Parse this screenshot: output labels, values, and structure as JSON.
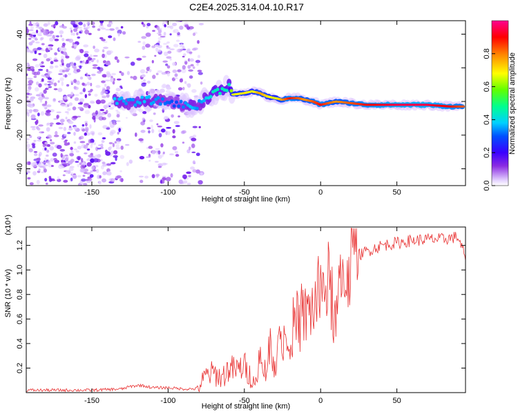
{
  "title": "C2E4.2025.314.04.10.R17",
  "chart_data": [
    {
      "type": "heatmap",
      "name": "spectrogram",
      "xlabel": "Height of straight line (km)",
      "ylabel": "Frequency (Hz)",
      "xlim": [
        -193,
        95
      ],
      "ylim": [
        -50,
        48
      ],
      "xticks": [
        -150,
        -100,
        -50,
        0,
        50
      ],
      "xtick_labels": [
        "-150",
        "-100",
        "-50",
        "0",
        "50"
      ],
      "yticks": [
        -40,
        -20,
        0,
        20,
        40
      ],
      "ytick_labels": [
        "-40",
        "-20",
        "0",
        "20",
        "40"
      ],
      "colorbar": {
        "label": "Normalized spectral amplitude",
        "range": [
          0.0,
          1.0
        ],
        "ticks": [
          0.0,
          0.2,
          0.4,
          0.6,
          0.8
        ],
        "tick_labels": [
          "0.0",
          "0.2",
          "0.4",
          "0.6",
          "0.8"
        ],
        "colors": [
          "#ffffff",
          "#d6b8ff",
          "#8a2be2",
          "#4000ff",
          "#0050ff",
          "#00d0ff",
          "#00ff80",
          "#80ff00",
          "#ffff00",
          "#ff8000",
          "#ff0000",
          "#ff0090"
        ]
      },
      "ridge": {
        "x": [
          -135,
          -125,
          -115,
          -105,
          -95,
          -85,
          -80,
          -75,
          -70,
          -65,
          -60,
          -58,
          -50,
          -45,
          -40,
          -35,
          -30,
          -25,
          -20,
          -15,
          -10,
          -5,
          0,
          5,
          10,
          20,
          30,
          50,
          70,
          85,
          93
        ],
        "freq": [
          1,
          -1,
          1,
          0,
          -1,
          -3,
          -2,
          2,
          5,
          7,
          9,
          4,
          5,
          6,
          5,
          3,
          2,
          1,
          2,
          2,
          1,
          0,
          -2,
          -1,
          0,
          -1,
          -2,
          -2,
          -2,
          -3,
          -3
        ],
        "amplitude": [
          0.45,
          0.4,
          0.45,
          0.4,
          0.35,
          0.45,
          0.4,
          0.45,
          0.5,
          0.5,
          0.5,
          0.7,
          0.75,
          0.7,
          0.8,
          0.75,
          0.7,
          0.8,
          0.9,
          0.85,
          0.8,
          0.85,
          0.9,
          0.85,
          0.8,
          0.85,
          0.9,
          0.95,
          0.95,
          0.9,
          0.85
        ]
      }
    },
    {
      "type": "line",
      "name": "snr",
      "xlabel": "Height of straight line (km)",
      "ylabel": "SNR (10 * v/v)",
      "y_multiplier": "(x10⁴)",
      "xlim": [
        -193,
        95
      ],
      "ylim": [
        0.0,
        1.35
      ],
      "xticks": [
        -150,
        -100,
        -50,
        0,
        50
      ],
      "xtick_labels": [
        "-150",
        "-100",
        "-50",
        "0",
        "50"
      ],
      "yticks": [
        0.2,
        0.4,
        0.6,
        0.8,
        1.0,
        1.2
      ],
      "ytick_labels": [
        "0.2",
        "0.4",
        "0.6",
        "0.8",
        "1.0",
        "1.2"
      ],
      "color": "#e83030",
      "x": [
        -193,
        -170,
        -150,
        -130,
        -125,
        -118,
        -110,
        -100,
        -90,
        -82,
        -78,
        -75,
        -70,
        -65,
        -60,
        -55,
        -50,
        -48,
        -45,
        -42,
        -40,
        -35,
        -30,
        -25,
        -20,
        -15,
        -10,
        -5,
        0,
        5,
        10,
        12,
        15,
        20,
        25,
        30,
        40,
        50,
        60,
        70,
        80,
        90,
        95
      ],
      "values": [
        0.02,
        0.02,
        0.02,
        0.03,
        0.05,
        0.06,
        0.04,
        0.04,
        0.03,
        0.03,
        0.08,
        0.14,
        0.16,
        0.12,
        0.2,
        0.18,
        0.22,
        0.17,
        0.12,
        0.07,
        0.15,
        0.26,
        0.32,
        0.42,
        0.52,
        0.55,
        0.62,
        0.7,
        0.8,
        0.9,
        0.55,
        0.75,
        0.95,
        1.05,
        1.12,
        1.15,
        1.2,
        1.22,
        1.24,
        1.25,
        1.25,
        1.27,
        1.1
      ]
    }
  ]
}
